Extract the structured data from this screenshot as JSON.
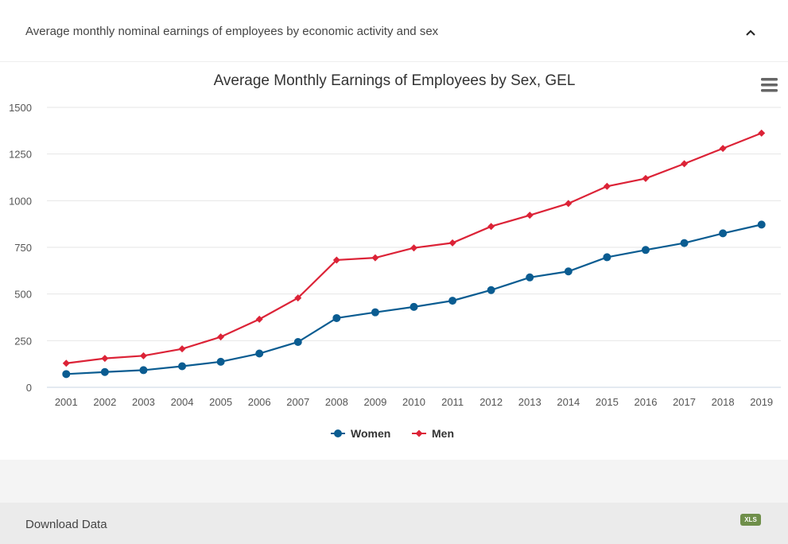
{
  "panel": {
    "title": "Average monthly nominal earnings of employees by economic activity and sex",
    "collapse_icon": "chevron-up-icon"
  },
  "footer": {
    "download_label": "Download Data",
    "xls_label": "XLS"
  },
  "chart_data": {
    "type": "line",
    "title": "Average Monthly Earnings of Employees by Sex, GEL",
    "xlabel": "",
    "ylabel": "",
    "ylim": [
      0,
      1500
    ],
    "yticks": [
      0,
      250,
      500,
      750,
      1000,
      1250,
      1500
    ],
    "categories": [
      "2001",
      "2002",
      "2003",
      "2004",
      "2005",
      "2006",
      "2007",
      "2008",
      "2009",
      "2010",
      "2011",
      "2012",
      "2013",
      "2014",
      "2015",
      "2016",
      "2017",
      "2018",
      "2019"
    ],
    "series": [
      {
        "name": "Women",
        "color": "#0a5c91",
        "marker": "circle",
        "values": [
          71,
          82,
          92,
          113,
          137,
          181,
          243,
          371,
          402,
          431,
          464,
          521,
          589,
          621,
          697,
          736,
          773,
          825,
          872
        ]
      },
      {
        "name": "Men",
        "color": "#dc2337",
        "marker": "diamond",
        "values": [
          129,
          155,
          169,
          206,
          270,
          365,
          479,
          682,
          694,
          747,
          774,
          862,
          922,
          985,
          1077,
          1119,
          1198,
          1280,
          1362
        ]
      }
    ],
    "grid": true,
    "legend_position": "bottom-center"
  }
}
